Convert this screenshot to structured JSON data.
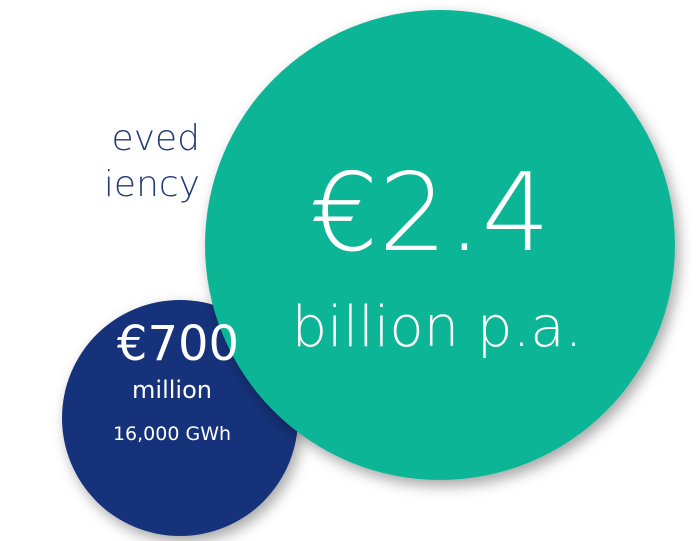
{
  "intro": {
    "lines": [
      "eved",
      "iency"
    ]
  },
  "small_circle": {
    "amount": "€700",
    "unit": "million",
    "energy": "16,000 GWh"
  },
  "large_circle": {
    "amount": "€2.4",
    "unit": "billion p.a."
  }
}
